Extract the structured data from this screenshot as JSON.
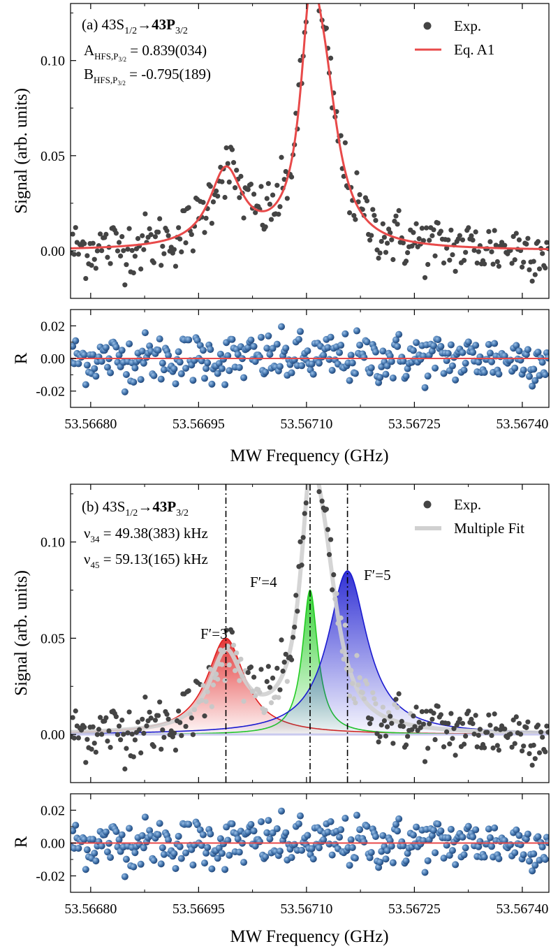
{
  "chart_data": [
    {
      "panel": "a",
      "type": "scatter",
      "title": "",
      "ylabel": "Signal (arb. units)",
      "xlabel": "",
      "ylim": [
        -0.025,
        0.13
      ],
      "xlim": [
        53.566772,
        53.567437
      ],
      "yticks": [
        0.0,
        0.05,
        0.1
      ],
      "ytick_labels": [
        "0.00",
        "0.05",
        "0.10"
      ],
      "annotation": {
        "prefix": "(a) 43S",
        "sub1": "1/2",
        "arrow": "→",
        "bold": "43P",
        "sub2": "3/2"
      },
      "param_A": {
        "main": "A",
        "sub": "HFS,P",
        "subsub": "3/2",
        "value": " = 0.839(034)"
      },
      "param_B": {
        "main": "B",
        "sub": "HFS,P",
        "subsub": "3/2",
        "value": " = -0.795(189)"
      },
      "legend": [
        "Exp.",
        "Eq. A1"
      ],
      "legend_position": "top-right",
      "fit": {
        "name": "Eq. A1",
        "color": "#e84a4a",
        "peaks": [
          {
            "center": 53.566988,
            "amplitude": 0.04,
            "hwhm": 2.8e-05
          },
          {
            "center": 53.567105,
            "amplitude": 0.085,
            "hwhm": 1.6e-05
          },
          {
            "center": 53.567123,
            "amplitude": 0.078,
            "hwhm": 2.6e-05
          }
        ]
      },
      "residual": {
        "ylabel": "R",
        "ylim": [
          -0.03,
          0.03
        ],
        "yticks": [
          -0.02,
          0.0,
          0.02
        ],
        "ytick_labels": [
          "-0.02",
          "0.00",
          "0.02"
        ]
      }
    },
    {
      "panel": "b",
      "type": "scatter",
      "title": "",
      "ylabel": "Signal (arb. units)",
      "xlabel": "MW Frequency (GHz)",
      "ylim": [
        -0.025,
        0.13
      ],
      "xlim": [
        53.566772,
        53.567437
      ],
      "xticks": [
        53.5668,
        53.56695,
        53.5671,
        53.56725,
        53.5674
      ],
      "xtick_labels": [
        "53.56680",
        "53.56695",
        "53.56710",
        "53.56725",
        "53.56740"
      ],
      "yticks": [
        0.0,
        0.05,
        0.1
      ],
      "ytick_labels": [
        "0.00",
        "0.05",
        "0.10"
      ],
      "annotation": {
        "prefix": "(b) 43S",
        "sub1": "1/2",
        "arrow": "→",
        "bold": "43P",
        "sub2": "3/2"
      },
      "param_nu34": {
        "main": "ν",
        "sub": "34",
        "value": " = 49.38(383) kHz"
      },
      "param_nu45": {
        "main": "ν",
        "sub": "45",
        "value": " = 59.13(165) kHz"
      },
      "legend": [
        "Exp.",
        "Multiple Fit"
      ],
      "legend_position": "top-right",
      "components": [
        {
          "label": "F′=3",
          "center": 53.566988,
          "amplitude": 0.05,
          "hwhm": 3.2e-05,
          "color": "#e02020"
        },
        {
          "label": "F′=4",
          "center": 53.567105,
          "amplitude": 0.075,
          "hwhm": 1.3e-05,
          "color": "#22cc22"
        },
        {
          "label": "F′=5",
          "center": 53.567157,
          "amplitude": 0.085,
          "hwhm": 3.3e-05,
          "color": "#1a1ad0"
        }
      ],
      "residual": {
        "ylabel": "R",
        "ylim": [
          -0.03,
          0.03
        ],
        "yticks": [
          -0.02,
          0.0,
          0.02
        ],
        "ytick_labels": [
          "-0.02",
          "0.00",
          "0.02"
        ]
      }
    }
  ],
  "shared": {
    "xlabel": "MW Frequency (GHz)",
    "xticks": [
      53.5668,
      53.56695,
      53.5671,
      53.56725,
      53.5674
    ],
    "xtick_labels": [
      "53.56680",
      "53.56695",
      "53.56710",
      "53.56725",
      "53.56740"
    ],
    "exp_color": "#444444",
    "residual_color": "#3d6fa8",
    "zero_line_color": "#e84a4a",
    "multifit_color": "#d0d0d0"
  }
}
